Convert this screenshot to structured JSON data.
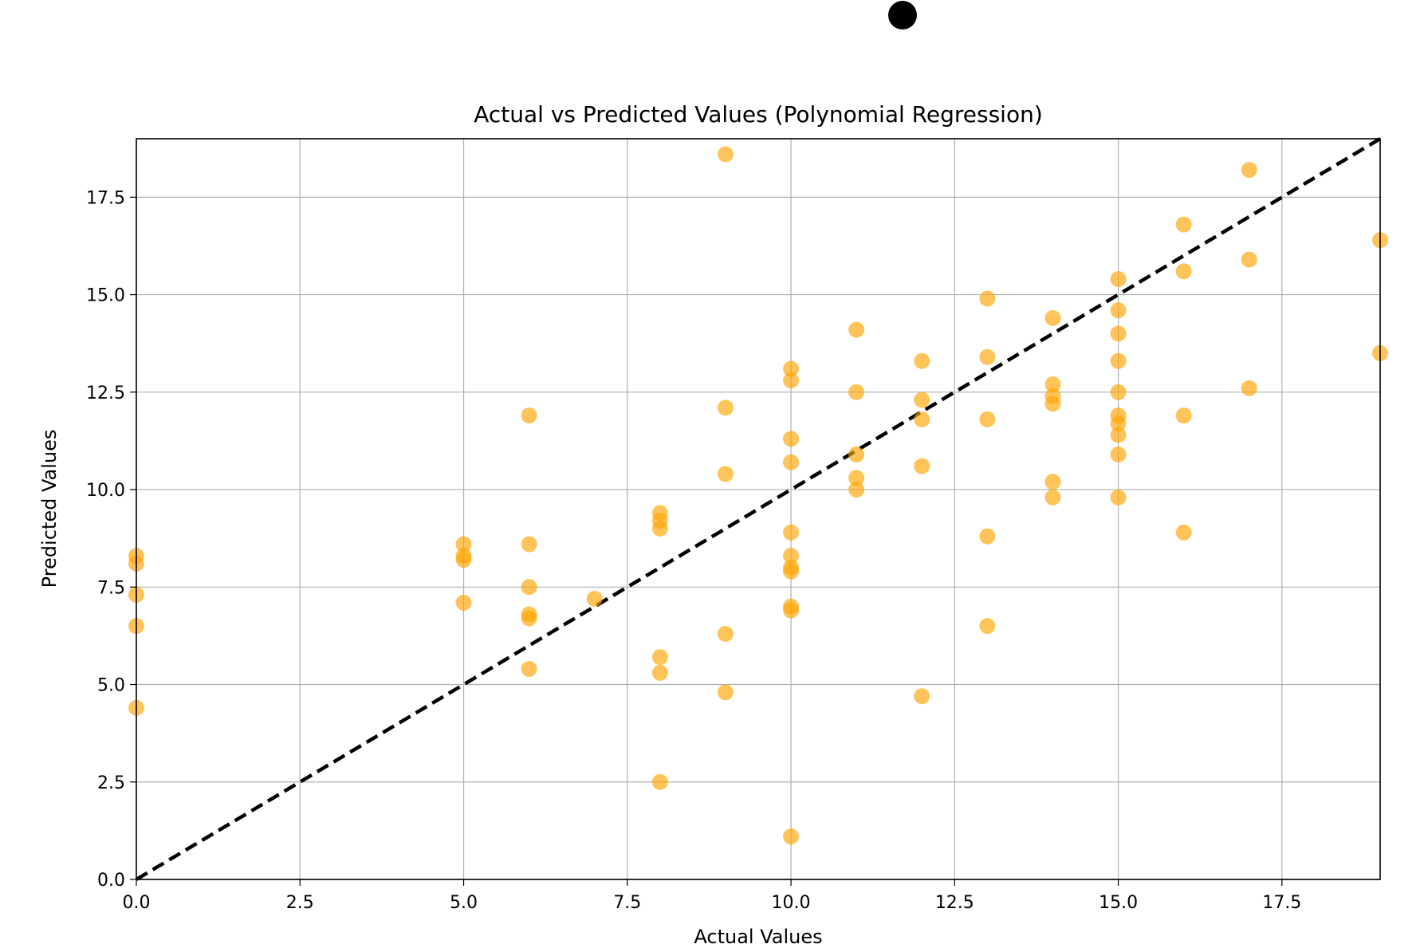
{
  "chart_data": {
    "type": "scatter",
    "title": "Actual vs Predicted Values (Polynomial Regression)",
    "xlabel": "Actual Values",
    "ylabel": "Predicted Values",
    "xlim": [
      0,
      19
    ],
    "ylim": [
      0,
      19
    ],
    "grid": true,
    "xticks": [
      0.0,
      2.5,
      5.0,
      7.5,
      10.0,
      12.5,
      15.0,
      17.5
    ],
    "yticks": [
      0.0,
      2.5,
      5.0,
      7.5,
      10.0,
      12.5,
      15.0,
      17.5
    ],
    "xtick_labels": [
      "0.0",
      "2.5",
      "5.0",
      "7.5",
      "10.0",
      "12.5",
      "15.0",
      "17.5"
    ],
    "ytick_labels": [
      "0.0",
      "2.5",
      "5.0",
      "7.5",
      "10.0",
      "12.5",
      "15.0",
      "17.5"
    ],
    "marker_color": "#FFA500",
    "marker_alpha": 0.65,
    "reference_line": {
      "x": [
        0,
        19
      ],
      "y": [
        0,
        19
      ],
      "style": "dashed",
      "color": "#000000"
    },
    "points": [
      [
        0,
        8.3
      ],
      [
        0,
        8.1
      ],
      [
        0,
        7.3
      ],
      [
        0,
        6.5
      ],
      [
        0,
        4.4
      ],
      [
        5,
        8.6
      ],
      [
        5,
        8.3
      ],
      [
        5,
        8.2
      ],
      [
        5,
        7.1
      ],
      [
        6,
        11.9
      ],
      [
        6,
        8.6
      ],
      [
        6,
        7.5
      ],
      [
        6,
        6.8
      ],
      [
        6,
        6.7
      ],
      [
        6,
        5.4
      ],
      [
        7,
        7.2
      ],
      [
        8,
        9.4
      ],
      [
        8,
        9.2
      ],
      [
        8,
        9.0
      ],
      [
        8,
        5.7
      ],
      [
        8,
        5.3
      ],
      [
        8,
        2.5
      ],
      [
        9,
        18.6
      ],
      [
        9,
        12.1
      ],
      [
        9,
        10.4
      ],
      [
        9,
        6.3
      ],
      [
        9,
        4.8
      ],
      [
        10,
        13.1
      ],
      [
        10,
        12.8
      ],
      [
        10,
        11.3
      ],
      [
        10,
        10.7
      ],
      [
        10,
        8.9
      ],
      [
        10,
        8.3
      ],
      [
        10,
        8.0
      ],
      [
        10,
        7.9
      ],
      [
        10,
        7.0
      ],
      [
        10,
        6.9
      ],
      [
        10,
        1.1
      ],
      [
        11,
        14.1
      ],
      [
        11,
        12.5
      ],
      [
        11,
        10.9
      ],
      [
        11,
        10.3
      ],
      [
        11,
        10.0
      ],
      [
        12,
        13.3
      ],
      [
        12,
        12.3
      ],
      [
        12,
        11.8
      ],
      [
        12,
        10.6
      ],
      [
        12,
        4.7
      ],
      [
        13,
        14.9
      ],
      [
        13,
        13.4
      ],
      [
        13,
        11.8
      ],
      [
        13,
        8.8
      ],
      [
        13,
        6.5
      ],
      [
        14,
        14.4
      ],
      [
        14,
        12.7
      ],
      [
        14,
        12.4
      ],
      [
        14,
        12.2
      ],
      [
        14,
        10.2
      ],
      [
        14,
        9.8
      ],
      [
        15,
        15.4
      ],
      [
        15,
        14.6
      ],
      [
        15,
        14.0
      ],
      [
        15,
        13.3
      ],
      [
        15,
        12.5
      ],
      [
        15,
        11.9
      ],
      [
        15,
        11.7
      ],
      [
        15,
        11.4
      ],
      [
        15,
        10.9
      ],
      [
        15,
        9.8
      ],
      [
        16,
        16.8
      ],
      [
        16,
        15.6
      ],
      [
        16,
        11.9
      ],
      [
        16,
        8.9
      ],
      [
        17,
        18.2
      ],
      [
        17,
        15.9
      ],
      [
        17,
        12.6
      ],
      [
        19,
        16.4
      ],
      [
        19,
        13.5
      ]
    ]
  },
  "extra_marker_color": "#000000"
}
